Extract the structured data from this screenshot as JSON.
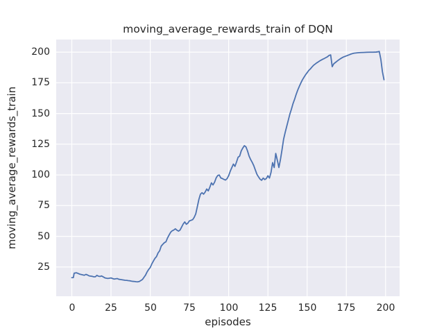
{
  "figure": {
    "background": "#FFFFFF"
  },
  "chart_data": {
    "type": "line",
    "title": "moving_average_rewards_train of DQN",
    "xlabel": "episodes",
    "ylabel": "moving_average_rewards_train",
    "xlim": [
      -9.95,
      208.95
    ],
    "ylim": [
      1.2,
      210.2
    ],
    "xticks": [
      0,
      25,
      50,
      75,
      100,
      125,
      150,
      175,
      200
    ],
    "yticks": [
      25,
      50,
      75,
      100,
      125,
      150,
      175,
      200
    ],
    "grid": true,
    "legend_position": "none",
    "style": {
      "line_color": "#4C72B0",
      "line_width": 1.8,
      "plot_background": "#EAEAF2",
      "grid_color": "#FFFFFF",
      "grid_width": 1.2,
      "text_color": "#262626"
    },
    "series": [
      {
        "name": "moving_average_rewards_train",
        "points": [
          [
            0,
            16.3
          ],
          [
            1,
            16.4
          ],
          [
            1.5,
            20.0
          ],
          [
            3,
            20.3
          ],
          [
            5,
            19.2
          ],
          [
            7,
            18.6
          ],
          [
            8,
            18.3
          ],
          [
            9,
            19.0
          ],
          [
            10,
            18.5
          ],
          [
            11,
            17.8
          ],
          [
            12,
            17.6
          ],
          [
            13,
            17.4
          ],
          [
            14,
            17.0
          ],
          [
            15,
            17.0
          ],
          [
            16,
            18.2
          ],
          [
            17,
            17.5
          ],
          [
            18,
            17.3
          ],
          [
            19,
            17.7
          ],
          [
            20,
            17.0
          ],
          [
            21,
            16.2
          ],
          [
            22,
            15.9
          ],
          [
            23,
            15.7
          ],
          [
            24,
            15.9
          ],
          [
            25,
            16.1
          ],
          [
            26,
            15.6
          ],
          [
            27,
            15.2
          ],
          [
            28,
            15.4
          ],
          [
            29,
            15.6
          ],
          [
            30,
            15.0
          ],
          [
            31,
            14.8
          ],
          [
            32,
            14.6
          ],
          [
            33,
            14.4
          ],
          [
            34,
            14.2
          ],
          [
            35,
            14.1
          ],
          [
            36,
            13.9
          ],
          [
            37,
            13.8
          ],
          [
            38,
            13.5
          ],
          [
            39,
            13.3
          ],
          [
            40,
            13.2
          ],
          [
            41,
            13.0
          ],
          [
            42,
            12.9
          ],
          [
            43,
            13.2
          ],
          [
            44,
            14.0
          ],
          [
            45,
            14.8
          ],
          [
            46,
            16.6
          ],
          [
            47,
            18.4
          ],
          [
            48,
            21.0
          ],
          [
            49,
            23.0
          ],
          [
            50,
            24.6
          ],
          [
            51,
            27.5
          ],
          [
            52,
            29.8
          ],
          [
            53,
            32.0
          ],
          [
            54,
            33.5
          ],
          [
            55,
            36.5
          ],
          [
            56,
            38.2
          ],
          [
            57,
            42.0
          ],
          [
            58,
            43.5
          ],
          [
            59,
            44.8
          ],
          [
            60,
            45.5
          ],
          [
            61,
            48.6
          ],
          [
            62,
            51.0
          ],
          [
            63,
            53.3
          ],
          [
            64,
            54.5
          ],
          [
            65,
            55.1
          ],
          [
            66,
            56.1
          ],
          [
            67,
            55.0
          ],
          [
            68,
            54.2
          ],
          [
            69,
            55.1
          ],
          [
            70,
            57.5
          ],
          [
            71,
            60.0
          ],
          [
            72,
            61.7
          ],
          [
            73,
            59.8
          ],
          [
            74,
            60.7
          ],
          [
            75,
            62.6
          ],
          [
            76,
            63.0
          ],
          [
            77,
            63.5
          ],
          [
            78,
            65.4
          ],
          [
            79,
            68.2
          ],
          [
            80,
            74.0
          ],
          [
            81,
            80.0
          ],
          [
            82,
            84.3
          ],
          [
            83,
            85.5
          ],
          [
            84,
            84.3
          ],
          [
            85,
            86.0
          ],
          [
            86,
            88.5
          ],
          [
            87,
            87.0
          ],
          [
            88,
            90.0
          ],
          [
            89,
            93.5
          ],
          [
            90,
            91.8
          ],
          [
            91,
            94.0
          ],
          [
            92,
            97.5
          ],
          [
            93,
            99.5
          ],
          [
            94,
            99.9
          ],
          [
            95,
            97.5
          ],
          [
            96,
            97.0
          ],
          [
            97,
            96.3
          ],
          [
            98,
            95.8
          ],
          [
            99,
            97.0
          ],
          [
            100,
            99.4
          ],
          [
            101,
            103.0
          ],
          [
            102,
            105.9
          ],
          [
            103,
            108.8
          ],
          [
            104,
            106.9
          ],
          [
            105,
            110.5
          ],
          [
            106,
            114.4
          ],
          [
            107,
            115.3
          ],
          [
            108,
            119.5
          ],
          [
            109,
            121.9
          ],
          [
            110,
            123.8
          ],
          [
            111,
            122.8
          ],
          [
            112,
            119.5
          ],
          [
            113,
            115.3
          ],
          [
            114,
            112.5
          ],
          [
            115,
            110.2
          ],
          [
            116,
            107.5
          ],
          [
            117,
            104.0
          ],
          [
            118,
            100.5
          ],
          [
            119,
            98.4
          ],
          [
            120,
            96.5
          ],
          [
            121,
            95.6
          ],
          [
            122,
            97.4
          ],
          [
            123,
            96.2
          ],
          [
            124,
            97.0
          ],
          [
            125,
            99.3
          ],
          [
            126,
            97.4
          ],
          [
            127,
            102.1
          ],
          [
            128,
            110.0
          ],
          [
            129,
            106.0
          ],
          [
            130,
            117.5
          ],
          [
            131,
            112.0
          ],
          [
            132,
            106.0
          ],
          [
            133,
            112.5
          ],
          [
            134,
            120.5
          ],
          [
            135,
            129.0
          ],
          [
            136,
            134.5
          ],
          [
            137,
            139.5
          ],
          [
            138,
            144.5
          ],
          [
            139,
            149.5
          ],
          [
            140,
            153.5
          ],
          [
            141,
            158.0
          ],
          [
            142,
            161.5
          ],
          [
            143,
            165.5
          ],
          [
            144,
            169.0
          ],
          [
            145,
            172.0
          ],
          [
            146,
            174.8
          ],
          [
            147,
            177.4
          ],
          [
            148,
            179.5
          ],
          [
            149,
            181.5
          ],
          [
            150,
            183.2
          ],
          [
            151,
            185.0
          ],
          [
            152,
            186.2
          ],
          [
            153,
            187.7
          ],
          [
            154,
            189.1
          ],
          [
            155,
            190.1
          ],
          [
            156,
            191.1
          ],
          [
            157,
            191.9
          ],
          [
            158,
            192.8
          ],
          [
            159,
            193.5
          ],
          [
            160,
            194.2
          ],
          [
            161,
            194.8
          ],
          [
            162,
            195.5
          ],
          [
            163,
            196.2
          ],
          [
            164,
            197.3
          ],
          [
            165,
            197.7
          ],
          [
            166,
            188.1
          ],
          [
            167,
            190.5
          ],
          [
            168,
            191.5
          ],
          [
            169,
            192.5
          ],
          [
            170,
            193.5
          ],
          [
            171,
            194.4
          ],
          [
            172,
            195.2
          ],
          [
            173,
            195.9
          ],
          [
            174,
            196.4
          ],
          [
            175,
            196.9
          ],
          [
            176,
            197.4
          ],
          [
            177,
            197.9
          ],
          [
            178,
            198.4
          ],
          [
            179,
            198.8
          ],
          [
            180,
            199.1
          ],
          [
            182,
            199.4
          ],
          [
            184,
            199.6
          ],
          [
            186,
            199.7
          ],
          [
            188,
            199.8
          ],
          [
            190,
            199.9
          ],
          [
            192,
            199.9
          ],
          [
            194,
            200.0
          ],
          [
            195,
            200.2
          ],
          [
            196,
            200.5
          ],
          [
            197,
            194.0
          ],
          [
            198,
            184.0
          ],
          [
            199,
            177.5
          ]
        ]
      }
    ]
  }
}
